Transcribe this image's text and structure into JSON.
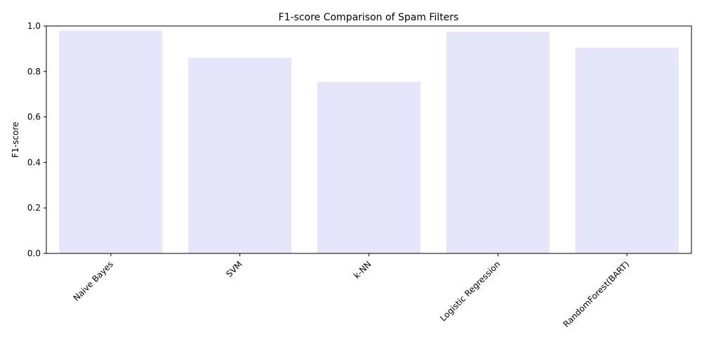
{
  "chart_data": {
    "type": "bar",
    "title": "F1-score Comparison of Spam Filters",
    "xlabel": "",
    "ylabel": "F1-score",
    "categories": [
      "Naive Bayes",
      "SVM",
      "k-NN",
      "Logistic Regression",
      "RandomForest(BART)"
    ],
    "values": [
      0.98,
      0.86,
      0.755,
      0.975,
      0.905
    ],
    "ylim": [
      0,
      1.0
    ],
    "yticks": [
      "0.0",
      "0.2",
      "0.4",
      "0.6",
      "0.8",
      "1.0"
    ],
    "grid": false,
    "bar_color": "#e6e6fa",
    "x_tick_rotation_deg": 45
  }
}
